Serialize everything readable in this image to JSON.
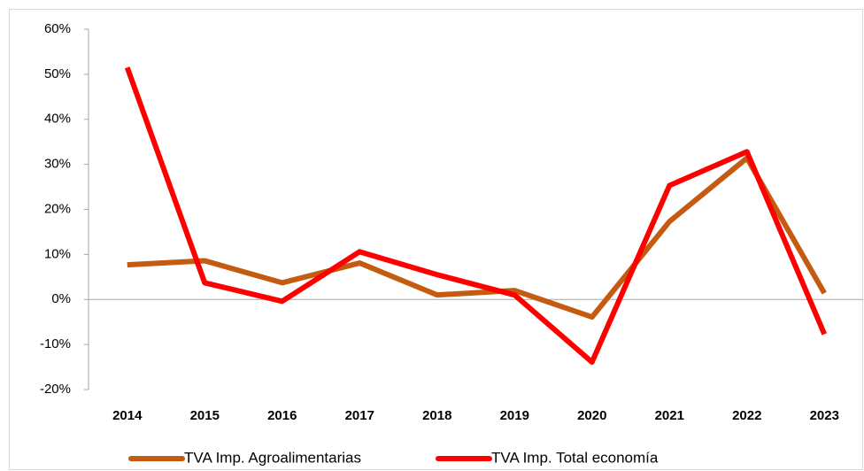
{
  "chart_data": {
    "type": "line",
    "categories": [
      "2014",
      "2015",
      "2016",
      "2017",
      "2018",
      "2019",
      "2020",
      "2021",
      "2022",
      "2023"
    ],
    "series": [
      {
        "name": "TVA Imp. Agroalimentarias",
        "color": "#c55a11",
        "values": [
          7.7,
          8.6,
          3.7,
          8.1,
          1.0,
          2.0,
          -3.9,
          17.3,
          31.4,
          1.4
        ]
      },
      {
        "name": "TVA Imp. Total economía",
        "color": "#ff0000",
        "values": [
          51.5,
          3.7,
          -0.4,
          10.6,
          5.5,
          1.0,
          -13.9,
          25.3,
          32.8,
          -7.7
        ]
      }
    ],
    "ylim": [
      -20,
      60
    ],
    "yticks": [
      {
        "value": -20,
        "label": "-20%"
      },
      {
        "value": -10,
        "label": "-10%"
      },
      {
        "value": 0,
        "label": "0%"
      },
      {
        "value": 10,
        "label": "10%"
      },
      {
        "value": 20,
        "label": "20%"
      },
      {
        "value": 30,
        "label": "30%"
      },
      {
        "value": 40,
        "label": "40%"
      },
      {
        "value": 50,
        "label": "50%"
      },
      {
        "value": 60,
        "label": "60%"
      }
    ],
    "legend": "bottom"
  }
}
